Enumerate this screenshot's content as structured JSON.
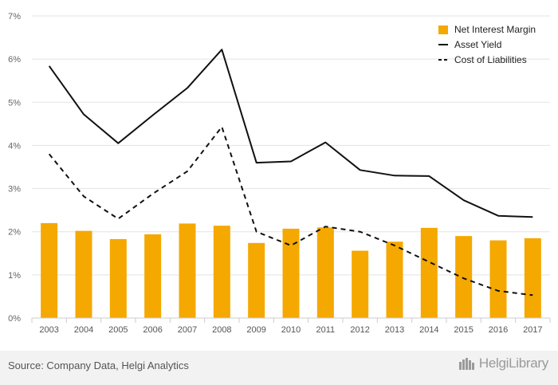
{
  "chart_data": {
    "type": "bar+line",
    "title": "",
    "xlabel": "",
    "ylabel": "",
    "categories": [
      "2003",
      "2004",
      "2005",
      "2006",
      "2007",
      "2008",
      "2009",
      "2010",
      "2011",
      "2012",
      "2013",
      "2014",
      "2015",
      "2016",
      "2017"
    ],
    "y_ticks": [
      "0%",
      "1%",
      "2%",
      "3%",
      "4%",
      "5%",
      "6%",
      "7%"
    ],
    "ylim": [
      0,
      7
    ],
    "grid": true,
    "legend_position": "top-right",
    "series": [
      {
        "name": "Net Interest Margin",
        "kind": "bar",
        "color": "#f5a800",
        "values": [
          2.2,
          2.02,
          1.83,
          1.94,
          2.19,
          2.14,
          1.74,
          2.07,
          2.1,
          1.56,
          1.77,
          2.09,
          1.9,
          1.8,
          1.85
        ]
      },
      {
        "name": "Asset Yield",
        "kind": "line",
        "style": "solid",
        "color": "#111111",
        "values": [
          5.84,
          4.72,
          4.05,
          4.7,
          5.33,
          6.22,
          3.6,
          3.63,
          4.07,
          3.43,
          3.3,
          3.29,
          2.73,
          2.37,
          2.34
        ]
      },
      {
        "name": "Cost of Liabilities",
        "kind": "line",
        "style": "dashed",
        "color": "#111111",
        "values": [
          3.8,
          2.82,
          2.3,
          2.88,
          3.4,
          4.43,
          2.0,
          1.68,
          2.12,
          2.0,
          1.68,
          1.3,
          0.92,
          0.63,
          0.53
        ]
      }
    ]
  },
  "footer": {
    "source": "Source: Company Data, Helgi Analytics",
    "logo_text": "HelgiLibrary",
    "logo_icon": "helgi-library-logo-icon"
  }
}
